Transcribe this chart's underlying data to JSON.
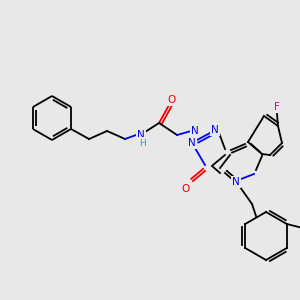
{
  "background_color": "#e8e8e8",
  "figsize": [
    3.0,
    3.0
  ],
  "dpi": 100,
  "colors": {
    "C": "#000000",
    "N": "#0000ee",
    "O": "#ee0000",
    "F": "#cc00cc",
    "H": "#4a8f9a"
  },
  "lw": 1.3,
  "dlw": 1.3,
  "doffset": 2.8
}
